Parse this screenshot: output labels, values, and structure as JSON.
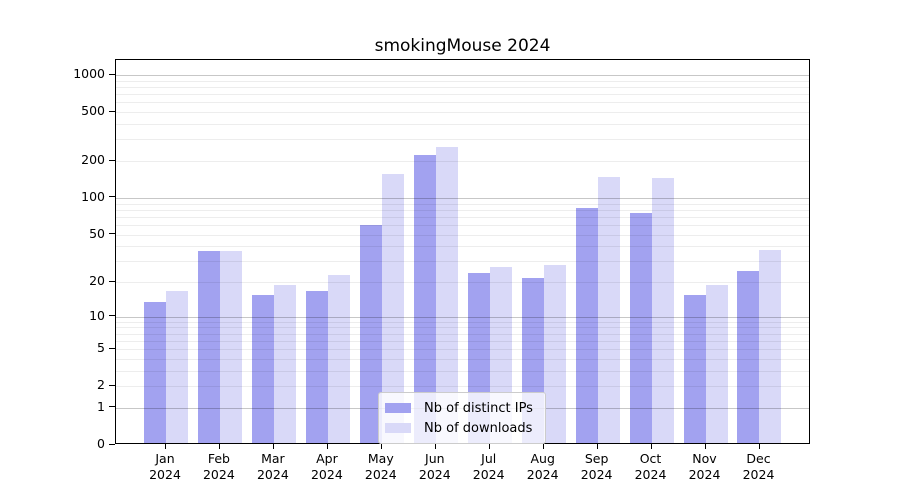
{
  "title": "smokingMouse 2024",
  "chart_data": {
    "type": "bar",
    "title": "smokingMouse 2024",
    "categories": [
      "Jan",
      "Feb",
      "Mar",
      "Apr",
      "May",
      "Jun",
      "Jul",
      "Aug",
      "Sep",
      "Oct",
      "Nov",
      "Dec"
    ],
    "x_tick_line2": "2024",
    "series": [
      {
        "name": "Nb of distinct IPs",
        "color": "#a2a2f0",
        "values": [
          13,
          35,
          15,
          16,
          58,
          215,
          23,
          21,
          80,
          73,
          15,
          24
        ]
      },
      {
        "name": "Nb of downloads",
        "color": "#d9d9f8",
        "values": [
          16,
          35,
          18,
          22,
          150,
          253,
          26,
          27,
          144,
          139,
          18,
          36
        ]
      }
    ],
    "y_ticks": [
      0,
      1,
      2,
      5,
      10,
      20,
      50,
      100,
      200,
      500,
      1000
    ],
    "y_scale": "log10(value+1)",
    "ylim": [
      0,
      1300
    ],
    "grid": true,
    "legend_position": "lower center",
    "axis_color": "#000000",
    "major_grid_color": "#c6c6c6",
    "minor_grid_color": "#ededed"
  }
}
